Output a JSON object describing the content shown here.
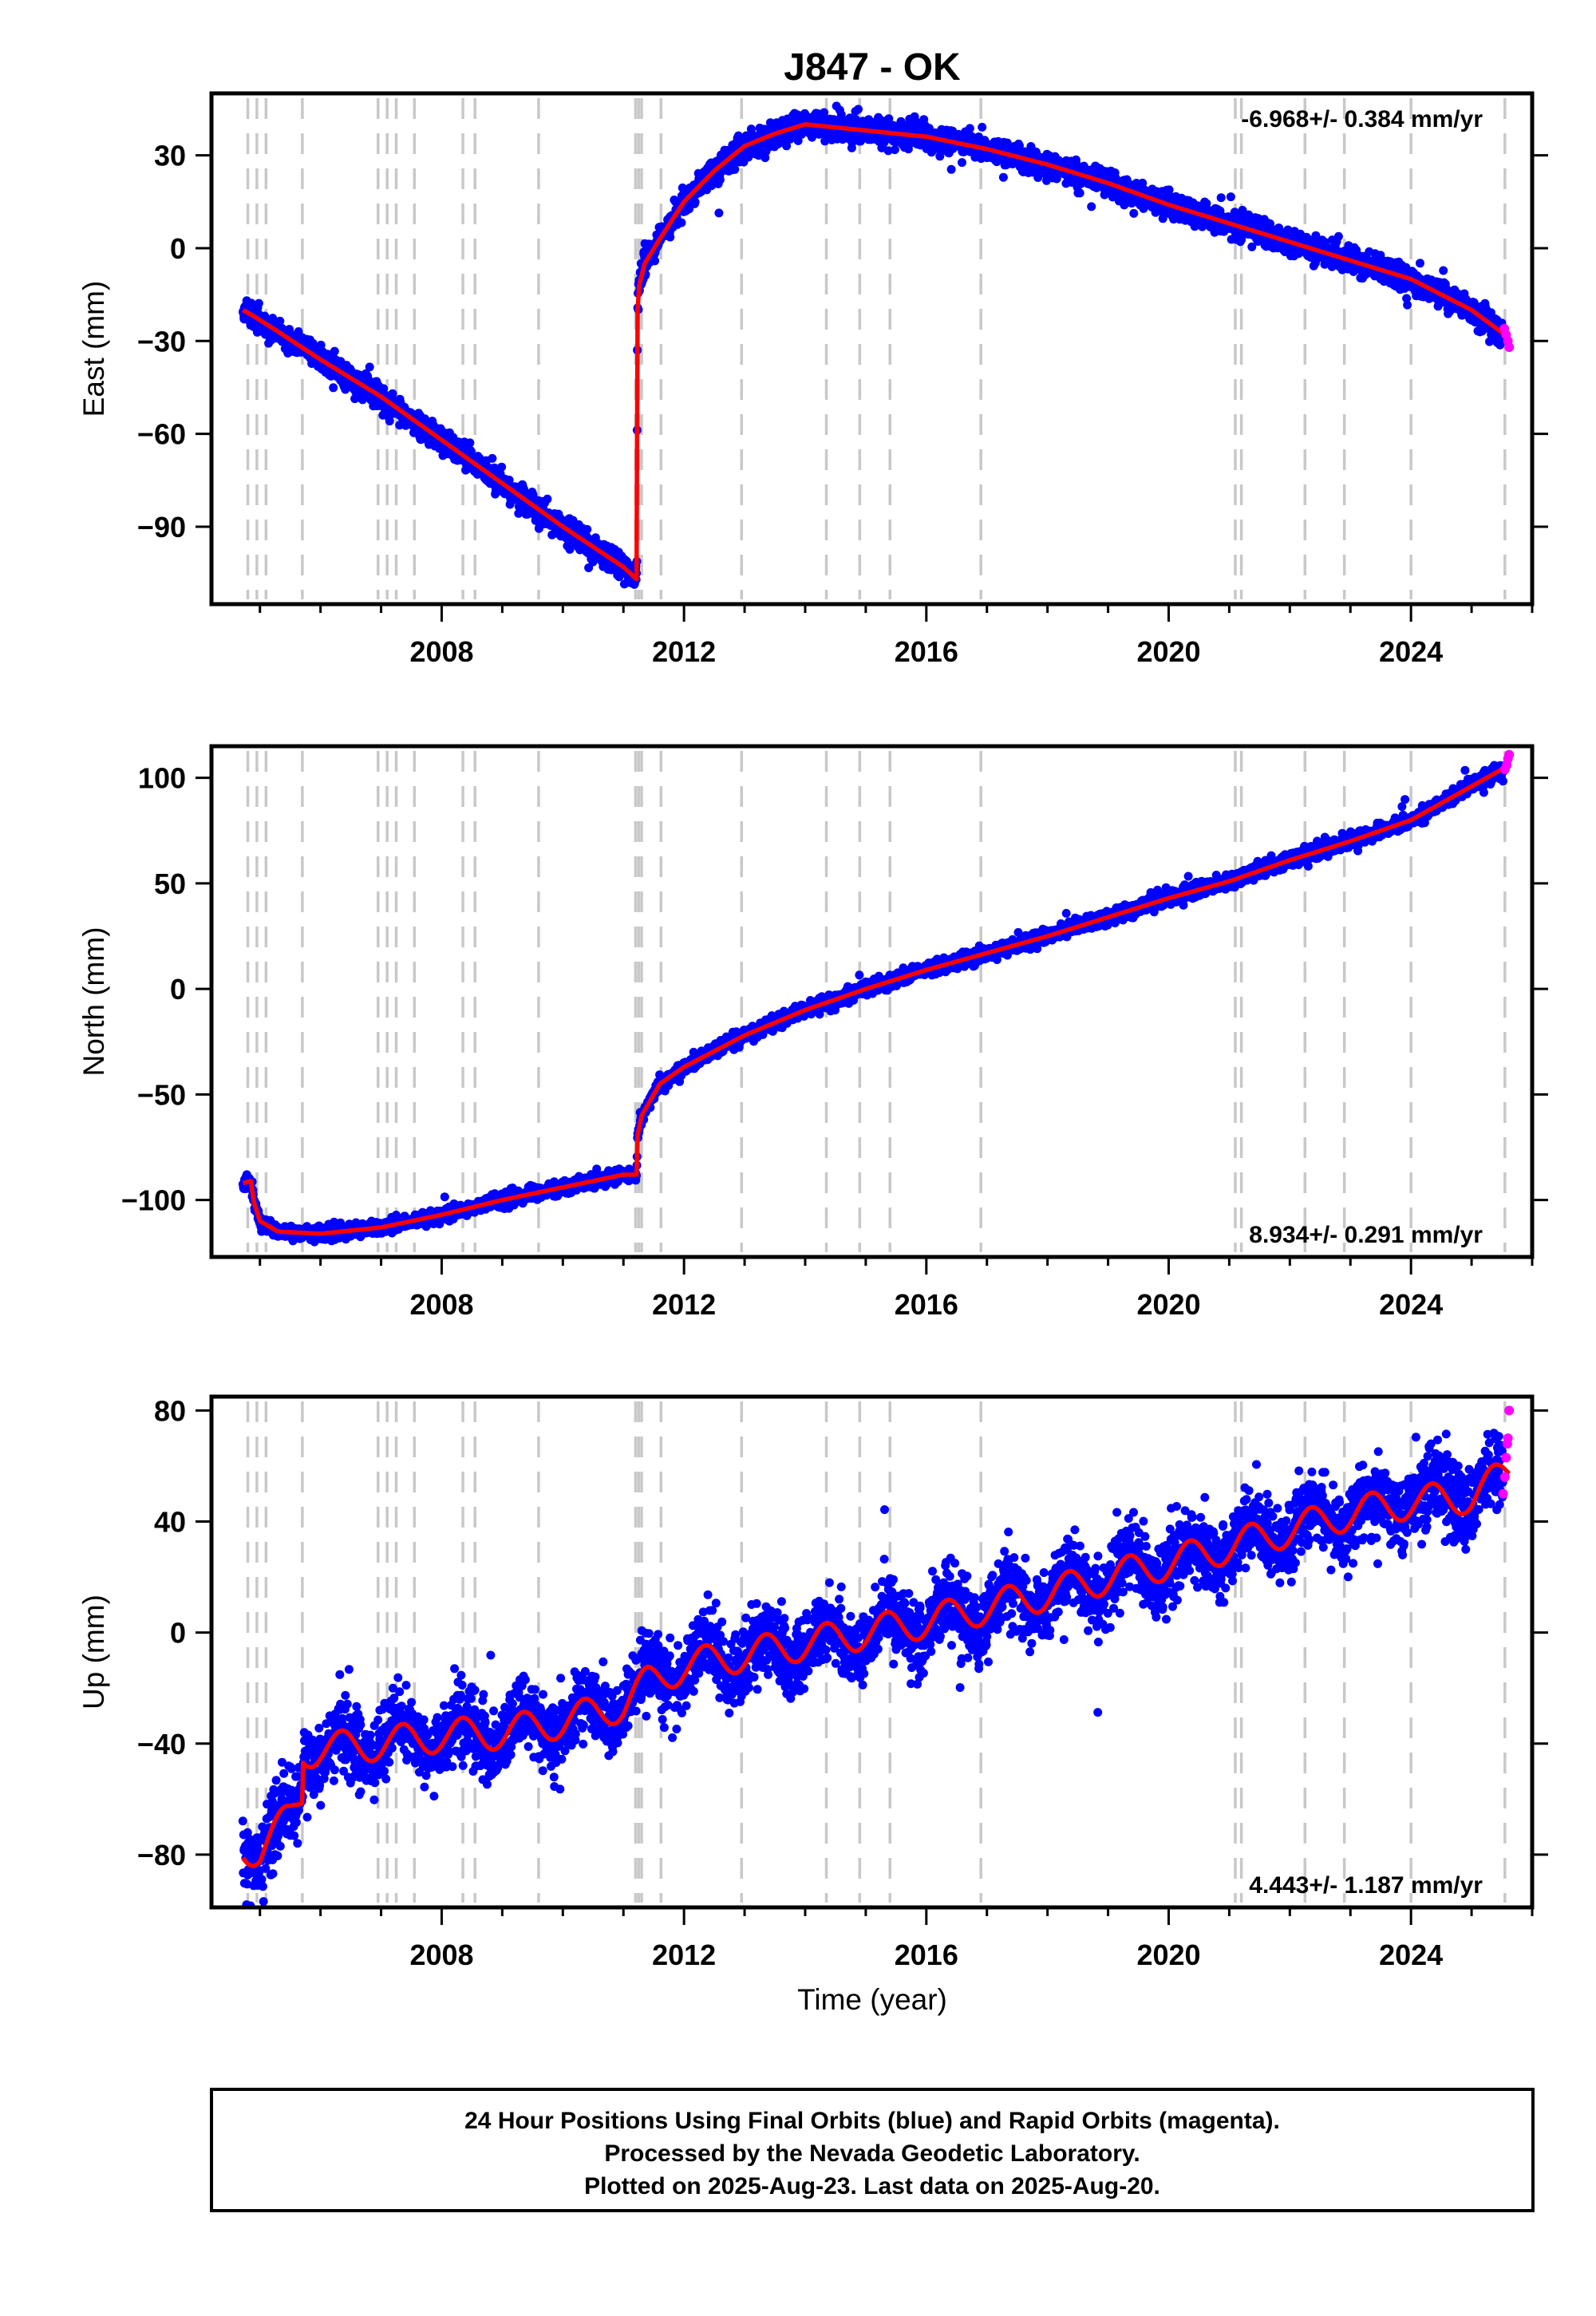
{
  "title": "J847 - OK",
  "xlabel": "Time (year)",
  "footer": {
    "lines": [
      "24 Hour Positions Using Final Orbits (blue) and Rapid Orbits (magenta).",
      "Processed by the Nevada Geodetic Laboratory.",
      "Plotted on 2025-Aug-23. Last data on 2025-Aug-20."
    ]
  },
  "colors": {
    "final_orbits": "#0000ff",
    "rapid_orbits": "#ff00ff",
    "model": "#ff0000",
    "event_lines": "#c8c8c8"
  },
  "chart_data": [
    {
      "type": "scatter",
      "name": "east",
      "ylabel": "East (mm)",
      "xlim": [
        2004.2,
        2026.0
      ],
      "ylim": [
        -115,
        50
      ],
      "xticks": [
        2008,
        2012,
        2016,
        2020,
        2024
      ],
      "xtick_labels": [
        "2008",
        "2012",
        "2016",
        "2020",
        "2024"
      ],
      "yticks": [
        -90,
        -60,
        -30,
        0,
        30
      ],
      "ytick_labels": [
        "−90",
        "−60",
        "−30",
        "0",
        "30"
      ],
      "rate": "-6.968+/- 0.384 mm/yr",
      "rate_position": "top-right",
      "event_years": [
        2004.8,
        2004.95,
        2005.1,
        2005.7,
        2006.95,
        2007.1,
        2007.25,
        2007.55,
        2008.35,
        2008.55,
        2009.6,
        2011.2,
        2011.25,
        2011.3,
        2011.62,
        2012.95,
        2014.35,
        2014.9,
        2015.4,
        2016.9,
        2021.1,
        2021.2,
        2022.25,
        2022.9,
        2024.0,
        2025.55
      ],
      "model_keypoints": [
        [
          2004.72,
          -20
        ],
        [
          2004.9,
          -22
        ],
        [
          2005.3,
          -27
        ],
        [
          2006.0,
          -36
        ],
        [
          2007.0,
          -48
        ],
        [
          2008.0,
          -62
        ],
        [
          2009.0,
          -76
        ],
        [
          2010.0,
          -90
        ],
        [
          2011.0,
          -103
        ],
        [
          2011.22,
          -107
        ],
        [
          2011.23,
          -21
        ],
        [
          2011.26,
          -12
        ],
        [
          2011.35,
          -5
        ],
        [
          2011.6,
          3
        ],
        [
          2012.0,
          15
        ],
        [
          2012.5,
          25
        ],
        [
          2013.0,
          33
        ],
        [
          2013.5,
          37
        ],
        [
          2014.0,
          40
        ],
        [
          2015.0,
          38
        ],
        [
          2016.0,
          36
        ],
        [
          2017.0,
          32
        ],
        [
          2018.0,
          27
        ],
        [
          2019.0,
          21
        ],
        [
          2020.0,
          14
        ],
        [
          2021.0,
          8
        ],
        [
          2022.0,
          2
        ],
        [
          2023.0,
          -4
        ],
        [
          2024.0,
          -10
        ],
        [
          2025.0,
          -20
        ],
        [
          2025.62,
          -29
        ]
      ],
      "scatter_sigma": 2.0,
      "rapid_points": [
        [
          2025.54,
          -26
        ],
        [
          2025.57,
          -28
        ],
        [
          2025.6,
          -30
        ],
        [
          2025.62,
          -32
        ]
      ]
    },
    {
      "type": "scatter",
      "name": "north",
      "ylabel": "North (mm)",
      "xlim": [
        2004.2,
        2026.0
      ],
      "ylim": [
        -127,
        115
      ],
      "xticks": [
        2008,
        2012,
        2016,
        2020,
        2024
      ],
      "xtick_labels": [
        "2008",
        "2012",
        "2016",
        "2020",
        "2024"
      ],
      "yticks": [
        -100,
        -50,
        0,
        50,
        100
      ],
      "ytick_labels": [
        "−100",
        "−50",
        "0",
        "50",
        "100"
      ],
      "rate": "8.934+/- 0.291 mm/yr",
      "rate_position": "bottom-right",
      "event_years": [
        2004.8,
        2004.95,
        2005.1,
        2005.7,
        2006.95,
        2007.1,
        2007.25,
        2007.55,
        2008.35,
        2008.55,
        2009.6,
        2011.2,
        2011.25,
        2011.3,
        2011.62,
        2012.95,
        2014.35,
        2014.9,
        2015.4,
        2016.9,
        2021.1,
        2021.2,
        2022.25,
        2022.9,
        2024.0,
        2025.55
      ],
      "model_keypoints": [
        [
          2004.72,
          -92
        ],
        [
          2004.85,
          -91
        ],
        [
          2004.9,
          -101
        ],
        [
          2005.0,
          -110
        ],
        [
          2005.3,
          -115
        ],
        [
          2006.0,
          -116
        ],
        [
          2007.0,
          -113
        ],
        [
          2008.0,
          -107
        ],
        [
          2009.0,
          -100
        ],
        [
          2010.0,
          -94
        ],
        [
          2011.0,
          -88
        ],
        [
          2011.22,
          -88
        ],
        [
          2011.23,
          -70
        ],
        [
          2011.3,
          -60
        ],
        [
          2011.6,
          -45
        ],
        [
          2012.0,
          -37
        ],
        [
          2013.0,
          -22
        ],
        [
          2014.0,
          -10
        ],
        [
          2015.0,
          0
        ],
        [
          2016.0,
          9
        ],
        [
          2017.0,
          17
        ],
        [
          2018.0,
          25
        ],
        [
          2019.0,
          34
        ],
        [
          2020.0,
          43
        ],
        [
          2021.0,
          51
        ],
        [
          2022.0,
          61
        ],
        [
          2023.0,
          70
        ],
        [
          2024.0,
          80
        ],
        [
          2025.0,
          96
        ],
        [
          2025.62,
          106
        ]
      ],
      "scatter_sigma": 1.6,
      "rapid_points": [
        [
          2025.55,
          104
        ],
        [
          2025.58,
          106
        ],
        [
          2025.6,
          109
        ],
        [
          2025.62,
          111
        ]
      ]
    },
    {
      "type": "scatter",
      "name": "up",
      "ylabel": "Up (mm)",
      "xlim": [
        2004.2,
        2026.0
      ],
      "ylim": [
        -99,
        85
      ],
      "xticks": [
        2008,
        2012,
        2016,
        2020,
        2024
      ],
      "xtick_labels": [
        "2008",
        "2012",
        "2016",
        "2020",
        "2024"
      ],
      "yticks": [
        -80,
        -40,
        0,
        40,
        80
      ],
      "ytick_labels": [
        "−80",
        "−40",
        "0",
        "40",
        "80"
      ],
      "rate": "4.443+/- 1.187 mm/yr",
      "rate_position": "bottom-right",
      "event_years": [
        2004.8,
        2004.95,
        2005.1,
        2005.7,
        2006.95,
        2007.1,
        2007.25,
        2007.55,
        2008.35,
        2008.55,
        2009.6,
        2011.2,
        2011.25,
        2011.3,
        2011.62,
        2012.95,
        2014.35,
        2014.9,
        2015.4,
        2016.9,
        2021.1,
        2021.2,
        2022.25,
        2022.9,
        2024.0,
        2025.55
      ],
      "model_keypoints": [
        [
          2004.72,
          -77
        ],
        [
          2005.0,
          -79
        ],
        [
          2005.5,
          -66
        ],
        [
          2005.7,
          -58
        ],
        [
          2005.71,
          -43
        ],
        [
          2006.0,
          -42
        ],
        [
          2007.0,
          -40
        ],
        [
          2008.0,
          -37
        ],
        [
          2009.0,
          -36
        ],
        [
          2010.0,
          -32
        ],
        [
          2011.0,
          -26
        ],
        [
          2011.4,
          -18
        ],
        [
          2012.0,
          -12
        ],
        [
          2013.0,
          -8
        ],
        [
          2014.0,
          -4
        ],
        [
          2015.0,
          0
        ],
        [
          2016.0,
          4
        ],
        [
          2017.0,
          9
        ],
        [
          2018.0,
          14
        ],
        [
          2019.0,
          20
        ],
        [
          2020.0,
          25
        ],
        [
          2021.0,
          31
        ],
        [
          2022.0,
          37
        ],
        [
          2023.0,
          43
        ],
        [
          2024.0,
          47
        ],
        [
          2025.0,
          49
        ],
        [
          2025.62,
          58
        ]
      ],
      "seasonal_amplitude": 6,
      "scatter_sigma": 6.5,
      "rapid_points": [
        [
          2025.52,
          50
        ],
        [
          2025.55,
          56
        ],
        [
          2025.57,
          63
        ],
        [
          2025.59,
          68
        ],
        [
          2025.6,
          70
        ],
        [
          2025.62,
          80
        ]
      ]
    }
  ]
}
